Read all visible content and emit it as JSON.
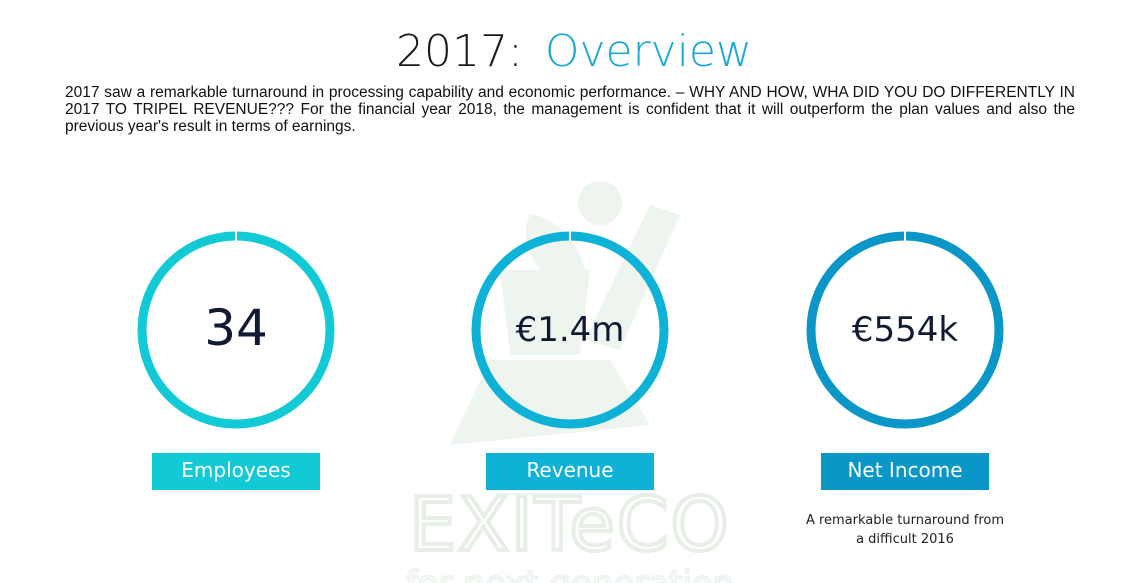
{
  "title": {
    "year": "2017:",
    "word": "Overview"
  },
  "intro": "2017 saw a remarkable turnaround in processing capability and economic performance. – WHY AND HOW, WHA DID YOU DO DIFFERENTLY IN 2017 TO TRIPEL REVENUE???  For the financial year 2018, the management is confident that it will outperform the plan values and also the previous year's result in terms of earnings.",
  "colors": {
    "title_accent": "#19a9d1",
    "watermark": "#eef4ee"
  },
  "watermark": {
    "name": "EXITeCO",
    "tagline": "for next generation"
  },
  "kpis": [
    {
      "value": "34",
      "label": "Employees",
      "note": "",
      "color": "#12c9d6"
    },
    {
      "value": "€1.4m",
      "label": "Revenue",
      "note": "",
      "color": "#0eb2d6"
    },
    {
      "value": "€554k",
      "label": "Net Income",
      "note": "A remarkable turnaround from a difficult 2016",
      "color": "#0a96c6"
    }
  ]
}
